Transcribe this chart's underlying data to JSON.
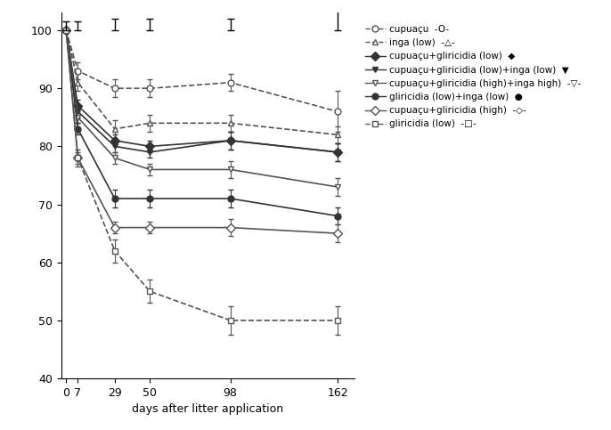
{
  "x": [
    0,
    7,
    29,
    50,
    98,
    162
  ],
  "series": [
    {
      "label": "cupuaçu  -O-",
      "values": [
        100,
        93,
        90,
        90,
        91,
        86
      ],
      "errors": [
        null,
        1.5,
        1.5,
        1.5,
        1.5,
        3.5
      ],
      "color": "#555555",
      "linestyle": "dashed",
      "marker": "o",
      "fillstyle": "none",
      "linewidth": 1.2
    },
    {
      "label": "inga (low)  -△-",
      "values": [
        100,
        91,
        83,
        84,
        84,
        82
      ],
      "errors": [
        null,
        1.5,
        1.5,
        1.5,
        1.5,
        1.5
      ],
      "color": "#555555",
      "linestyle": "dashed",
      "marker": "^",
      "fillstyle": "none",
      "linewidth": 1.2
    },
    {
      "label": "cupuaçu+gliricidia (low)  ◆",
      "values": [
        100,
        87,
        81,
        80,
        81,
        79
      ],
      "errors": [
        null,
        1.0,
        1.0,
        1.0,
        1.5,
        1.5
      ],
      "color": "#333333",
      "linestyle": "solid",
      "marker": "D",
      "fillstyle": "full",
      "linewidth": 1.2
    },
    {
      "label": "cupuaçu+gliricidia (low)+inga (low)  ▼",
      "values": [
        100,
        86,
        80,
        79,
        81,
        79
      ],
      "errors": [
        null,
        1.0,
        1.0,
        1.0,
        1.5,
        1.5
      ],
      "color": "#333333",
      "linestyle": "solid",
      "marker": "v",
      "fillstyle": "full",
      "linewidth": 1.2
    },
    {
      "label": "cupuaçu+gliricidia (high)+inga high)  -▽-",
      "values": [
        100,
        85,
        78,
        76,
        76,
        73
      ],
      "errors": [
        null,
        1.0,
        1.0,
        1.0,
        1.5,
        1.5
      ],
      "color": "#555555",
      "linestyle": "solid",
      "marker": "v",
      "fillstyle": "none",
      "linewidth": 1.2
    },
    {
      "label": "gliricidia (low)+inga (low)  ●",
      "values": [
        100,
        83,
        71,
        71,
        71,
        68
      ],
      "errors": [
        null,
        1.0,
        1.5,
        1.5,
        1.5,
        1.5
      ],
      "color": "#333333",
      "linestyle": "solid",
      "marker": "o",
      "fillstyle": "full",
      "linewidth": 1.2
    },
    {
      "label": "cupuaçu+gliricidia (high)  -◇-",
      "values": [
        100,
        78,
        66,
        66,
        66,
        65
      ],
      "errors": [
        null,
        1.0,
        1.0,
        1.0,
        1.5,
        1.5
      ],
      "color": "#555555",
      "linestyle": "solid",
      "marker": "D",
      "fillstyle": "none",
      "linewidth": 1.2
    },
    {
      "label": "gliricidia (low)  -□-",
      "values": [
        100,
        78,
        62,
        55,
        50,
        50
      ],
      "errors": [
        null,
        1.5,
        2.0,
        2.0,
        2.5,
        2.5
      ],
      "color": "#555555",
      "linestyle": "dashed",
      "marker": "s",
      "fillstyle": "none",
      "linewidth": 1.2
    }
  ],
  "lsd_bars": {
    "x_positions": [
      0,
      7,
      29,
      50,
      98,
      162
    ],
    "heights": [
      1.5,
      1.5,
      2.0,
      2.0,
      2.0,
      3.5
    ],
    "y_top": 100
  },
  "xlabel": "days after litter application",
  "ylim": [
    40,
    103
  ],
  "xlim": [
    -3,
    172
  ],
  "yticks": [
    40,
    50,
    60,
    70,
    80,
    90,
    100
  ],
  "xticks": [
    0,
    7,
    29,
    50,
    98,
    162
  ],
  "background_color": "#ffffff",
  "legend_entries": [
    {
      "label": "cupuaçu  -O-",
      "color": "#555555",
      "marker": "o",
      "fillstyle": "none",
      "linestyle": "dashed"
    },
    {
      "label": "inga (low)  -△-",
      "color": "#555555",
      "marker": "^",
      "fillstyle": "none",
      "linestyle": "dashed"
    },
    {
      "label": "cupuaçu+gliricidia (low)  ◆",
      "color": "#333333",
      "marker": "D",
      "fillstyle": "full",
      "linestyle": "solid"
    },
    {
      "label": "cupuaçu+gliricidia (low)+inga (low)  ▼",
      "color": "#333333",
      "marker": "v",
      "fillstyle": "full",
      "linestyle": "solid"
    },
    {
      "label": "cupuaçu+gliricidia (high)+inga high)  -▽-",
      "color": "#555555",
      "marker": "v",
      "fillstyle": "none",
      "linestyle": "solid"
    },
    {
      "label": "gliricidia (low)+inga (low)  ●",
      "color": "#333333",
      "marker": "o",
      "fillstyle": "full",
      "linestyle": "solid"
    },
    {
      "label": "cupuaçu+gliricidia (high)  -◇-",
      "color": "#555555",
      "marker": "D",
      "fillstyle": "none",
      "linestyle": "solid"
    },
    {
      "label": "gliricidia (low)  -□-",
      "color": "#555555",
      "marker": "s",
      "fillstyle": "none",
      "linestyle": "dashed"
    }
  ]
}
